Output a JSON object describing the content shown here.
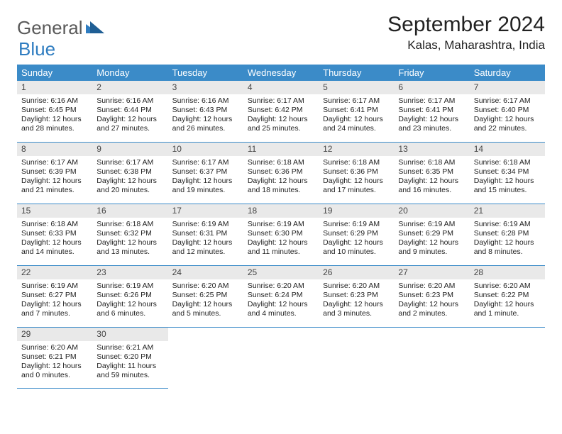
{
  "brand": {
    "word1": "General",
    "word2": "Blue"
  },
  "title": "September 2024",
  "location": "Kalas, Maharashtra, India",
  "colors": {
    "header_bg": "#3b8bc8",
    "header_text": "#ffffff",
    "daynum_bg": "#e9e9e9",
    "border": "#3b8bc8",
    "brand_gray": "#5a5a5a",
    "brand_blue": "#2e7cc0"
  },
  "dow": [
    "Sunday",
    "Monday",
    "Tuesday",
    "Wednesday",
    "Thursday",
    "Friday",
    "Saturday"
  ],
  "days": [
    {
      "n": 1,
      "sr": "6:16 AM",
      "ss": "6:45 PM",
      "d1": "12 hours",
      "d2": "28 minutes."
    },
    {
      "n": 2,
      "sr": "6:16 AM",
      "ss": "6:44 PM",
      "d1": "12 hours",
      "d2": "27 minutes."
    },
    {
      "n": 3,
      "sr": "6:16 AM",
      "ss": "6:43 PM",
      "d1": "12 hours",
      "d2": "26 minutes."
    },
    {
      "n": 4,
      "sr": "6:17 AM",
      "ss": "6:42 PM",
      "d1": "12 hours",
      "d2": "25 minutes."
    },
    {
      "n": 5,
      "sr": "6:17 AM",
      "ss": "6:41 PM",
      "d1": "12 hours",
      "d2": "24 minutes."
    },
    {
      "n": 6,
      "sr": "6:17 AM",
      "ss": "6:41 PM",
      "d1": "12 hours",
      "d2": "23 minutes."
    },
    {
      "n": 7,
      "sr": "6:17 AM",
      "ss": "6:40 PM",
      "d1": "12 hours",
      "d2": "22 minutes."
    },
    {
      "n": 8,
      "sr": "6:17 AM",
      "ss": "6:39 PM",
      "d1": "12 hours",
      "d2": "21 minutes."
    },
    {
      "n": 9,
      "sr": "6:17 AM",
      "ss": "6:38 PM",
      "d1": "12 hours",
      "d2": "20 minutes."
    },
    {
      "n": 10,
      "sr": "6:17 AM",
      "ss": "6:37 PM",
      "d1": "12 hours",
      "d2": "19 minutes."
    },
    {
      "n": 11,
      "sr": "6:18 AM",
      "ss": "6:36 PM",
      "d1": "12 hours",
      "d2": "18 minutes."
    },
    {
      "n": 12,
      "sr": "6:18 AM",
      "ss": "6:36 PM",
      "d1": "12 hours",
      "d2": "17 minutes."
    },
    {
      "n": 13,
      "sr": "6:18 AM",
      "ss": "6:35 PM",
      "d1": "12 hours",
      "d2": "16 minutes."
    },
    {
      "n": 14,
      "sr": "6:18 AM",
      "ss": "6:34 PM",
      "d1": "12 hours",
      "d2": "15 minutes."
    },
    {
      "n": 15,
      "sr": "6:18 AM",
      "ss": "6:33 PM",
      "d1": "12 hours",
      "d2": "14 minutes."
    },
    {
      "n": 16,
      "sr": "6:18 AM",
      "ss": "6:32 PM",
      "d1": "12 hours",
      "d2": "13 minutes."
    },
    {
      "n": 17,
      "sr": "6:19 AM",
      "ss": "6:31 PM",
      "d1": "12 hours",
      "d2": "12 minutes."
    },
    {
      "n": 18,
      "sr": "6:19 AM",
      "ss": "6:30 PM",
      "d1": "12 hours",
      "d2": "11 minutes."
    },
    {
      "n": 19,
      "sr": "6:19 AM",
      "ss": "6:29 PM",
      "d1": "12 hours",
      "d2": "10 minutes."
    },
    {
      "n": 20,
      "sr": "6:19 AM",
      "ss": "6:29 PM",
      "d1": "12 hours",
      "d2": "9 minutes."
    },
    {
      "n": 21,
      "sr": "6:19 AM",
      "ss": "6:28 PM",
      "d1": "12 hours",
      "d2": "8 minutes."
    },
    {
      "n": 22,
      "sr": "6:19 AM",
      "ss": "6:27 PM",
      "d1": "12 hours",
      "d2": "7 minutes."
    },
    {
      "n": 23,
      "sr": "6:19 AM",
      "ss": "6:26 PM",
      "d1": "12 hours",
      "d2": "6 minutes."
    },
    {
      "n": 24,
      "sr": "6:20 AM",
      "ss": "6:25 PM",
      "d1": "12 hours",
      "d2": "5 minutes."
    },
    {
      "n": 25,
      "sr": "6:20 AM",
      "ss": "6:24 PM",
      "d1": "12 hours",
      "d2": "4 minutes."
    },
    {
      "n": 26,
      "sr": "6:20 AM",
      "ss": "6:23 PM",
      "d1": "12 hours",
      "d2": "3 minutes."
    },
    {
      "n": 27,
      "sr": "6:20 AM",
      "ss": "6:23 PM",
      "d1": "12 hours",
      "d2": "2 minutes."
    },
    {
      "n": 28,
      "sr": "6:20 AM",
      "ss": "6:22 PM",
      "d1": "12 hours",
      "d2": "1 minute."
    },
    {
      "n": 29,
      "sr": "6:20 AM",
      "ss": "6:21 PM",
      "d1": "12 hours",
      "d2": "0 minutes."
    },
    {
      "n": 30,
      "sr": "6:21 AM",
      "ss": "6:20 PM",
      "d1": "11 hours",
      "d2": "59 minutes."
    }
  ],
  "labels": {
    "sunrise": "Sunrise:",
    "sunset": "Sunset:",
    "daylight": "Daylight:",
    "and": "and"
  },
  "layout": {
    "first_day_offset": 0,
    "cells_total": 35
  }
}
